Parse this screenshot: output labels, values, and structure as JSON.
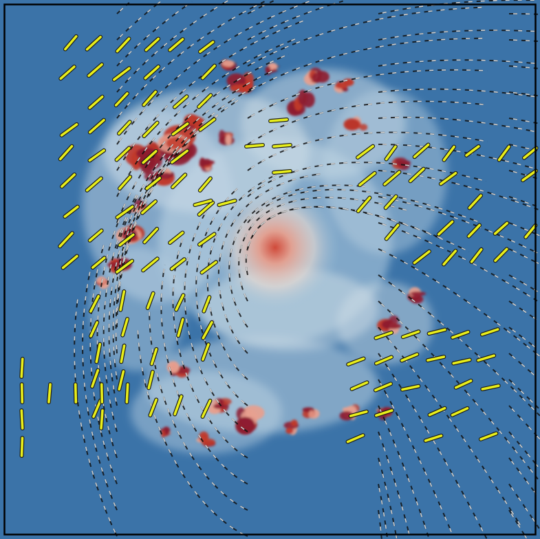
{
  "image": {
    "kind": "polarization-magnetic-field-map",
    "description_visible_text": "",
    "colors": {
      "background_blue": "#3b73a8",
      "deep_blue": "#2a5b8c",
      "light_blue": "#9cc2dc",
      "pale": "#e8d9d0",
      "pink": "#e6a08f",
      "red": "#c0392b",
      "dark_red": "#8e1b2f",
      "vector_fill": "#e8ee1a",
      "vector_edge": "#1a1a1a",
      "streamline_dark": "#111111",
      "streamline_light": "#f2f2f2",
      "frame_border": "#000000"
    },
    "features": {
      "has_frame_border": true,
      "has_streamlines": true,
      "has_polarization_vectors": true,
      "has_emission_clumps": true
    }
  }
}
